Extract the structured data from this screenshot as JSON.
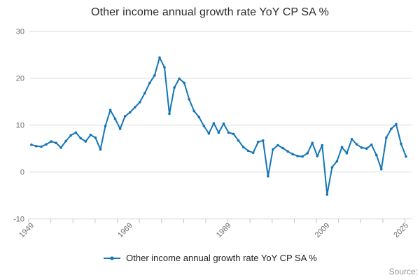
{
  "title": "Other income annual growth rate YoY CP SA %",
  "legend": {
    "label": "Other income annual growth rate YoY CP SA %"
  },
  "source": {
    "label": "Source:"
  },
  "colors": {
    "line": "#1375b8",
    "grid": "#d9d9d9",
    "x_tick": "#b9c4de",
    "axis_text": "#6e6e6e",
    "title_text": "#2b2b2b",
    "legend_text": "#1f1f1f",
    "source_text": "#949494"
  },
  "chart_data": {
    "type": "line",
    "title": "Other income annual growth rate YoY CP SA %",
    "xlabel": "",
    "ylabel": "",
    "year_start": 1949,
    "year_end": 2025,
    "year_interval": 1,
    "x_axis": {
      "label_years": [
        1949,
        1969,
        1989,
        2009,
        2025
      ],
      "tick_count": 18
    },
    "y_axis": {
      "ticks": [
        30,
        20,
        10,
        0,
        -10
      ],
      "min": -10,
      "max": 30
    },
    "grid": "horizontal",
    "legend_position": "bottom-center",
    "series": [
      {
        "name": "Other income annual growth rate YoY CP SA %",
        "values": [
          5.8,
          5.5,
          5.4,
          5.9,
          6.5,
          6.2,
          5.2,
          6.6,
          7.8,
          8.4,
          7.2,
          6.5,
          7.9,
          7.3,
          4.8,
          9.8,
          13.2,
          11.3,
          9.2,
          11.9,
          12.7,
          13.8,
          14.9,
          16.8,
          19.0,
          20.6,
          24.4,
          22.3,
          12.4,
          18.0,
          19.9,
          19.0,
          15.5,
          13.0,
          11.7,
          9.8,
          8.2,
          10.4,
          8.4,
          10.3,
          8.4,
          8.1,
          6.7,
          5.3,
          4.5,
          4.1,
          6.4,
          6.7,
          -0.9,
          4.8,
          5.7,
          5.1,
          4.4,
          3.8,
          3.4,
          3.3,
          4.0,
          6.2,
          3.4,
          5.7,
          -4.8,
          1.0,
          2.3,
          5.3,
          4.0,
          7.0,
          5.9,
          5.2,
          5.0,
          5.8,
          3.6,
          0.6,
          7.3,
          9.2,
          10.2,
          6.0,
          3.3
        ]
      }
    ]
  }
}
